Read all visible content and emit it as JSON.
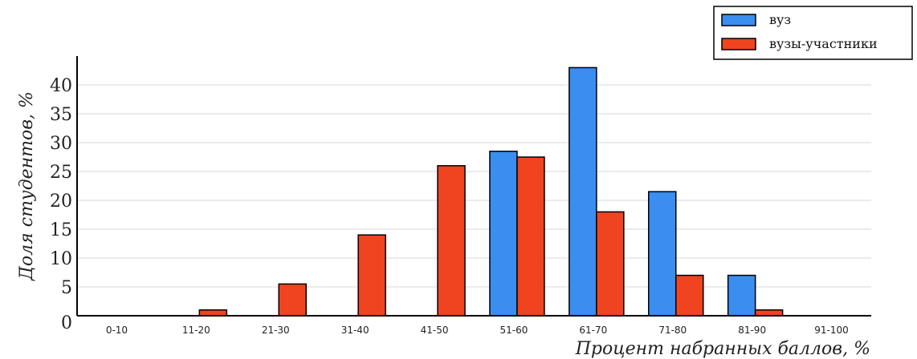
{
  "chart_data": {
    "type": "bar",
    "categories": [
      "0-10",
      "11-20",
      "21-30",
      "31-40",
      "41-50",
      "51-60",
      "61-70",
      "71-80",
      "81-90",
      "91-100"
    ],
    "series": [
      {
        "name": "вуз",
        "color": "#3a8ef0",
        "values": [
          0,
          0,
          0,
          0,
          0,
          28.5,
          43,
          21.5,
          7,
          0
        ]
      },
      {
        "name": "вузы-участники",
        "color": "#f04320",
        "values": [
          0,
          1,
          5.5,
          14,
          26,
          27.5,
          18,
          7,
          1,
          0
        ]
      }
    ],
    "xlabel": "Процент набранных баллов, %",
    "ylabel": "Доля студентов, %",
    "ylim": [
      0,
      45
    ],
    "yticks": [
      0,
      5,
      10,
      15,
      20,
      25,
      30,
      35,
      40
    ],
    "grid": true,
    "legend_position": "top-right"
  }
}
